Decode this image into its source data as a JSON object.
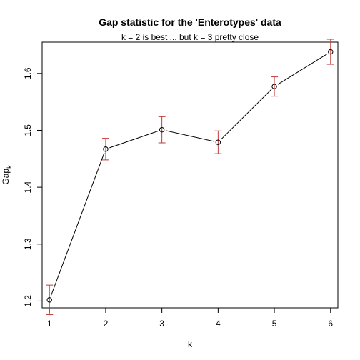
{
  "chart_data": {
    "type": "line",
    "title": "Gap statistic for the 'Enterotypes' data",
    "subtitle": "k = 2 is best ... but  k = 3  pretty close",
    "xlabel": "k",
    "ylabel_main": "Gap",
    "ylabel_sub": "k",
    "x": [
      1,
      2,
      3,
      4,
      5,
      6
    ],
    "y": [
      1.202,
      1.467,
      1.501,
      1.479,
      1.577,
      1.638
    ],
    "se": [
      0.026,
      0.019,
      0.023,
      0.02,
      0.017,
      0.022
    ],
    "xlim": [
      0.87,
      6.13
    ],
    "ylim": [
      1.188,
      1.655
    ],
    "xticks": [
      "1",
      "2",
      "3",
      "4",
      "5",
      "6"
    ],
    "yticks": [
      "1.2",
      "1.3",
      "1.4",
      "1.5",
      "1.6"
    ],
    "grid": false,
    "line_color": "#000000",
    "errorbar_color": "#c23b3b"
  }
}
